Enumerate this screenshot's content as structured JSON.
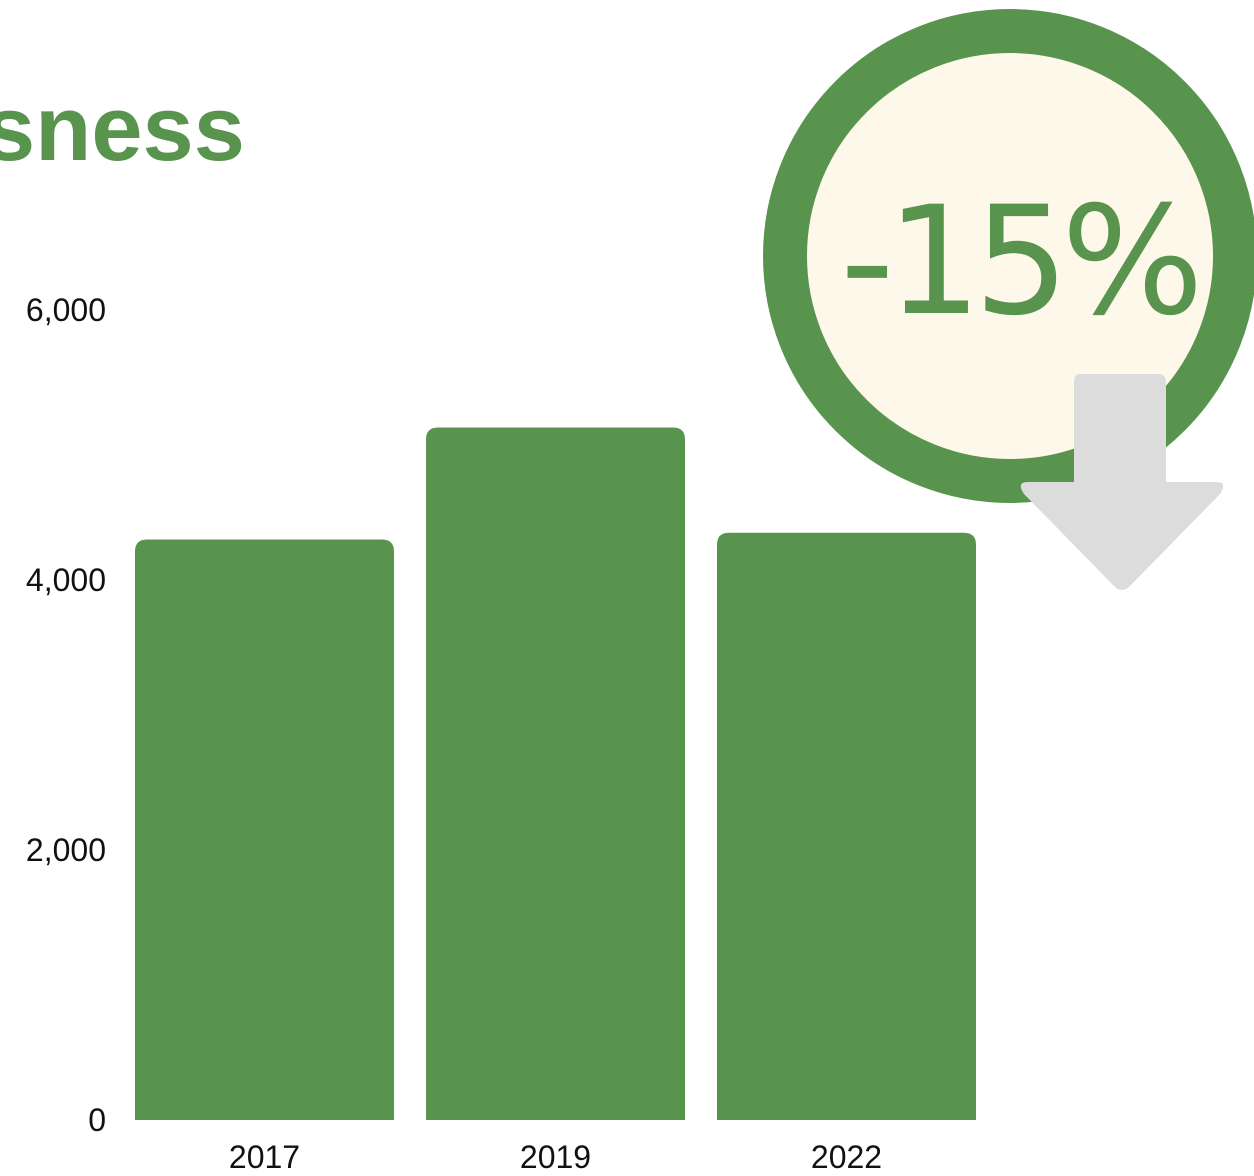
{
  "chart_data": {
    "type": "bar",
    "title": "sness",
    "categories": [
      "2017",
      "2019",
      "2022"
    ],
    "values": [
      4300,
      5130,
      4350
    ],
    "ylim": [
      0,
      6000
    ],
    "yticks": [
      0,
      2000,
      4000,
      6000
    ],
    "ytick_labels": [
      "0",
      "2,000",
      "4,000",
      "6,000"
    ],
    "xlabel": "",
    "ylabel": "",
    "grid": false,
    "legend": "none",
    "annotation": {
      "text": "-15%",
      "shape": "circle-badge",
      "arrow": "down-arrow-icon"
    }
  },
  "colors": {
    "bar": "#59944f",
    "title": "#59944f",
    "badge_ring": "#59944f",
    "badge_fill": "#fef8ea",
    "badge_text": "#59944f",
    "arrow": "#dcdcdc",
    "axis_text": "#111111"
  }
}
